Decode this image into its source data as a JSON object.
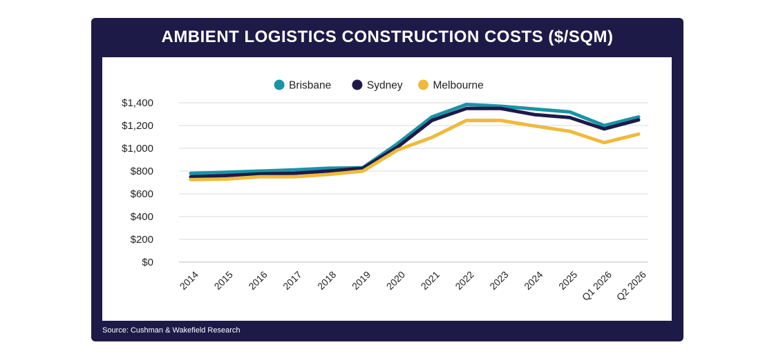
{
  "title": "AMBIENT LOGISTICS CONSTRUCTION COSTS ($/SQM)",
  "source": "Source: Cushman & Wakefield Research",
  "colors": {
    "frame": "#1e1a48",
    "Brisbane": "#1a93a6",
    "Sydney": "#1e1a48",
    "Melbourne": "#efba3c",
    "grid": "#d9d9d9"
  },
  "chart_data": {
    "type": "line",
    "title": "AMBIENT LOGISTICS CONSTRUCTION COSTS ($/SQM)",
    "categories": [
      "2014",
      "2015",
      "2016",
      "2017",
      "2018",
      "2019",
      "2020",
      "2021",
      "2022",
      "2023",
      "2024",
      "2025",
      "Q1 2026",
      "Q2 2026"
    ],
    "series": [
      {
        "name": "Brisbane",
        "values": [
          780,
          790,
          800,
          810,
          825,
          830,
          1040,
          1275,
          1385,
          1370,
          1345,
          1320,
          1200,
          1275
        ]
      },
      {
        "name": "Sydney",
        "values": [
          750,
          760,
          775,
          780,
          800,
          825,
          1010,
          1245,
          1350,
          1350,
          1295,
          1270,
          1170,
          1250
        ]
      },
      {
        "name": "Melbourne",
        "values": [
          725,
          730,
          750,
          750,
          770,
          800,
          985,
          1095,
          1245,
          1245,
          1195,
          1150,
          1050,
          1125
        ]
      }
    ],
    "y_ticks": [
      "$0",
      "$200",
      "$400",
      "$600",
      "$800",
      "$1,000",
      "$1,200",
      "$1,400"
    ],
    "ylim": [
      0,
      1400
    ],
    "grid": true,
    "legend_position": "top-center",
    "xlabel": "",
    "ylabel": ""
  }
}
